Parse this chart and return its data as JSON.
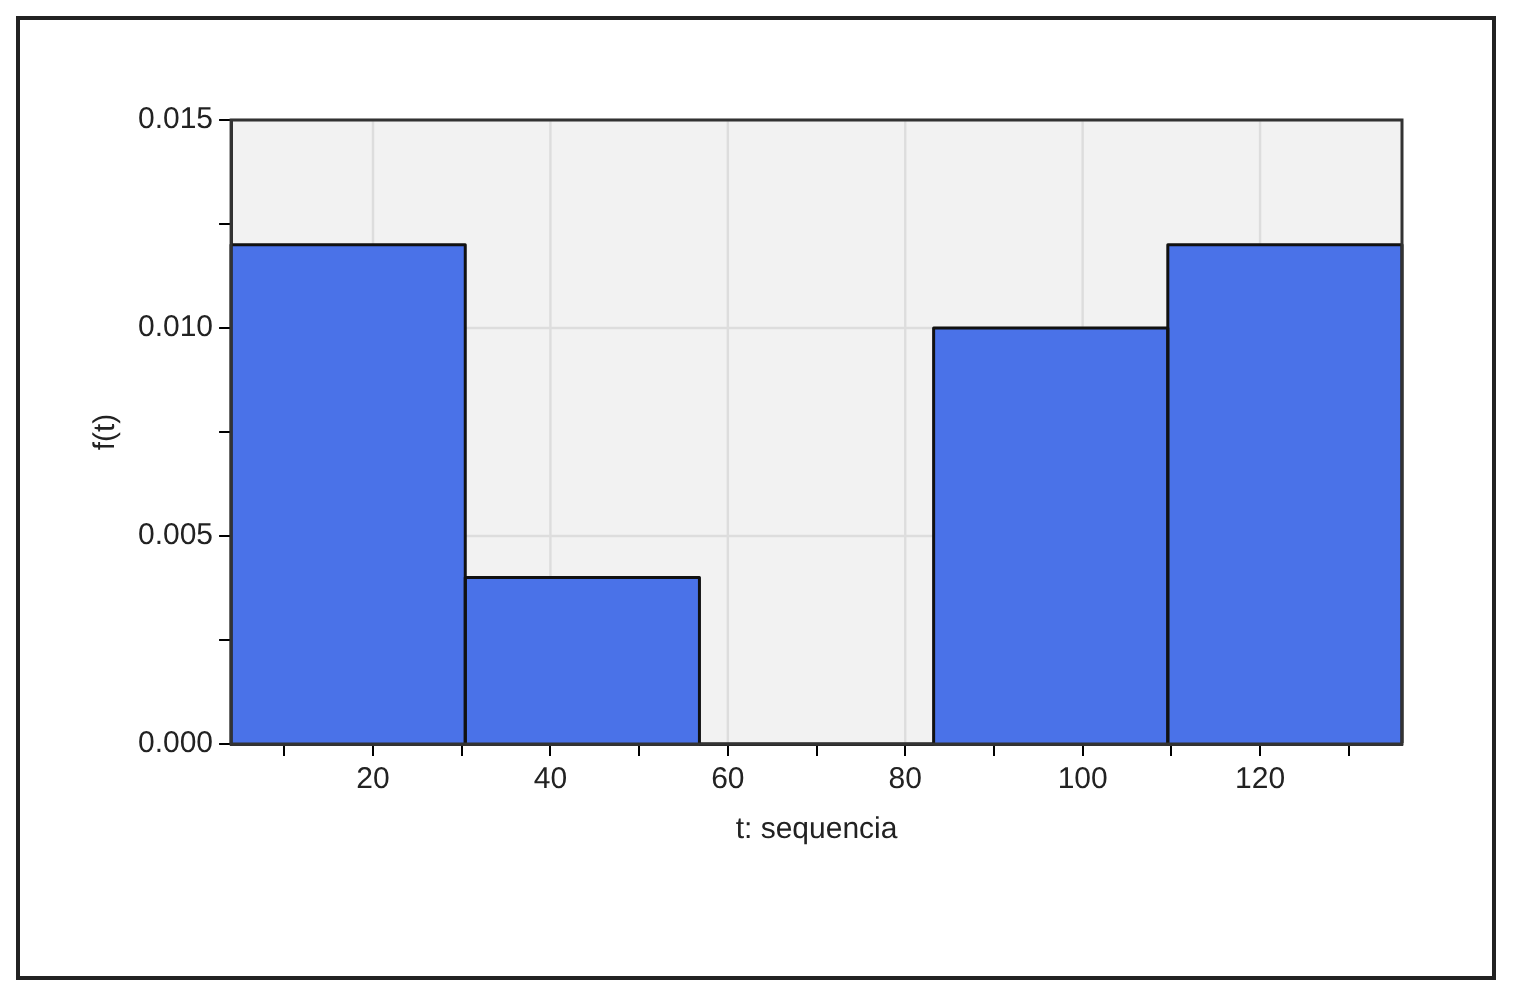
{
  "chart_data": {
    "type": "histogram",
    "xlabel": "t: sequencia",
    "ylabel": "f(t)",
    "bins": [
      4,
      30.4,
      56.8,
      83.2,
      109.6,
      136
    ],
    "values": [
      0.012,
      0.004,
      0,
      0.01,
      0.012
    ],
    "color": "#4a72e8",
    "xlim": [
      4,
      136
    ],
    "xticks": [
      {
        "value": 10,
        "label": null
      },
      20,
      {
        "value": 30,
        "label": null
      },
      40,
      {
        "value": 50,
        "label": null
      },
      60,
      {
        "value": 70,
        "label": null
      },
      80,
      {
        "value": 90,
        "label": null
      },
      100,
      {
        "value": 110,
        "label": null
      },
      120,
      {
        "value": 130,
        "label": null
      }
    ],
    "ylim": [
      0,
      0.015
    ],
    "yticks": [
      {
        "value": 0,
        "label": "0.000"
      },
      {
        "value": 0.0025,
        "label": null
      },
      {
        "value": 0.005,
        "label": "0.005"
      },
      {
        "value": 0.0075,
        "label": null
      },
      {
        "value": 0.01,
        "label": "0.010"
      },
      {
        "value": 0.0125,
        "label": null
      },
      {
        "value": 0.015,
        "label": "0.015"
      }
    ],
    "grid": true,
    "legend": false
  }
}
